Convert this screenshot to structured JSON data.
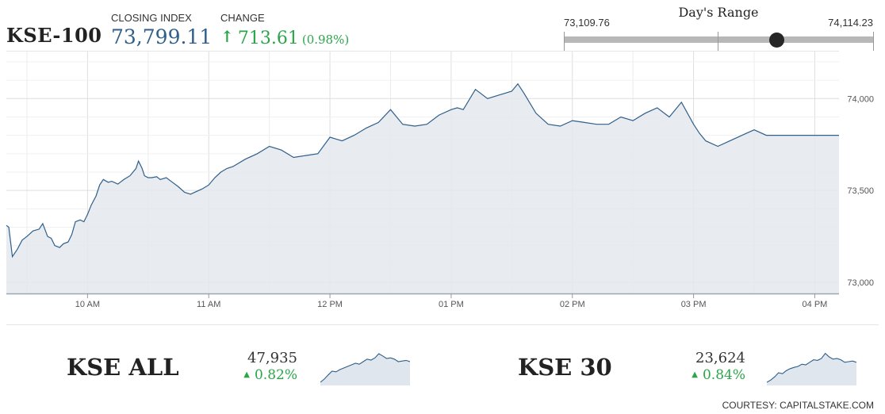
{
  "header": {
    "index_name": "KSE-100",
    "closing_label": "CLOSING INDEX",
    "closing_value": "73,799.11",
    "change_label": "CHANGE",
    "change_value": "713.61",
    "change_pct": "(0.98%)",
    "change_color": "#2aa54a",
    "closing_color": "#2f5f8a"
  },
  "days_range": {
    "title": "Day's Range",
    "low_label": "73,109.76",
    "high_label": "74,114.23",
    "low": 73109.76,
    "high": 74114.23,
    "current": 73799.11
  },
  "chart_data": {
    "type": "area",
    "x_ticks": [
      "10 AM",
      "11 AM",
      "12 PM",
      "01 PM",
      "02 PM",
      "03 PM",
      "04 PM"
    ],
    "y_ticks": [
      "73,000",
      "73,500",
      "74,000"
    ],
    "y_tick_values": [
      73000,
      73500,
      74000
    ],
    "ylim": [
      72940,
      74260
    ],
    "xlim": [
      9.33,
      16.2
    ],
    "grid": true,
    "line_color": "#2f5f8a",
    "fill_color": "#e4e9ef",
    "series": [
      {
        "x": [
          9.33,
          9.35,
          9.38,
          9.42,
          9.46,
          9.5,
          9.55,
          9.6,
          9.63,
          9.67,
          9.7,
          9.73,
          9.77,
          9.8,
          9.84,
          9.87,
          9.9,
          9.94,
          9.97,
          10.0,
          10.03,
          10.07,
          10.1,
          10.13,
          10.17,
          10.2,
          10.25,
          10.3,
          10.35,
          10.4,
          10.42,
          10.45,
          10.47,
          10.5,
          10.53,
          10.57,
          10.6,
          10.65,
          10.7,
          10.75,
          10.8,
          10.85,
          10.9,
          10.95,
          11.0,
          11.05,
          11.1,
          11.15,
          11.2,
          11.3,
          11.4,
          11.5,
          11.6,
          11.7,
          11.8,
          11.9,
          12.0,
          12.05,
          12.1,
          12.2,
          12.3,
          12.4,
          12.5,
          12.6,
          12.7,
          12.8,
          12.9,
          13.0,
          13.05,
          13.1,
          13.2,
          13.3,
          13.4,
          13.5,
          13.55,
          13.6,
          13.7,
          13.8,
          13.9,
          14.0,
          14.1,
          14.2,
          14.3,
          14.4,
          14.5,
          14.6,
          14.7,
          14.8,
          14.9,
          15.0,
          15.05,
          15.1,
          15.2,
          15.3,
          15.4,
          15.5,
          15.6,
          15.7,
          15.8,
          15.9,
          16.0,
          16.1,
          16.2
        ],
        "y": [
          73310,
          73300,
          73140,
          73180,
          73230,
          73250,
          73280,
          73290,
          73320,
          73250,
          73240,
          73200,
          73190,
          73210,
          73220,
          73260,
          73330,
          73340,
          73330,
          73370,
          73420,
          73470,
          73530,
          73560,
          73545,
          73550,
          73535,
          73560,
          73580,
          73620,
          73660,
          73620,
          73580,
          73570,
          73570,
          73575,
          73560,
          73570,
          73545,
          73520,
          73490,
          73480,
          73495,
          73510,
          73530,
          73570,
          73600,
          73620,
          73630,
          73670,
          73700,
          73740,
          73720,
          73680,
          73690,
          73700,
          73790,
          73780,
          73770,
          73800,
          73840,
          73870,
          73940,
          73860,
          73850,
          73860,
          73910,
          73940,
          73950,
          73940,
          74050,
          74000,
          74020,
          74040,
          74080,
          74030,
          73920,
          73860,
          73850,
          73880,
          73870,
          73860,
          73860,
          73900,
          73880,
          73920,
          73950,
          73900,
          73980,
          73860,
          73810,
          73770,
          73740,
          73770,
          73800,
          73830,
          73800,
          73800,
          73800,
          73800,
          73800,
          73800,
          73800
        ]
      }
    ]
  },
  "sub_indices": [
    {
      "name": "KSE ALL",
      "value": "47,935",
      "change": "0.82%",
      "spark": [
        0.05,
        0.15,
        0.28,
        0.4,
        0.38,
        0.45,
        0.5,
        0.55,
        0.6,
        0.65,
        0.62,
        0.7,
        0.78,
        0.75,
        0.82,
        0.95,
        0.88,
        0.8,
        0.82,
        0.78,
        0.7,
        0.72,
        0.74,
        0.7
      ]
    },
    {
      "name": "KSE 30",
      "value": "23,624",
      "change": "0.84%",
      "spark": [
        0.05,
        0.12,
        0.22,
        0.35,
        0.32,
        0.42,
        0.48,
        0.52,
        0.55,
        0.62,
        0.6,
        0.68,
        0.76,
        0.74,
        0.8,
        0.96,
        0.85,
        0.78,
        0.8,
        0.76,
        0.68,
        0.7,
        0.72,
        0.68
      ]
    }
  ],
  "credit": "COURTESY: CAPITALSTAKE.COM"
}
